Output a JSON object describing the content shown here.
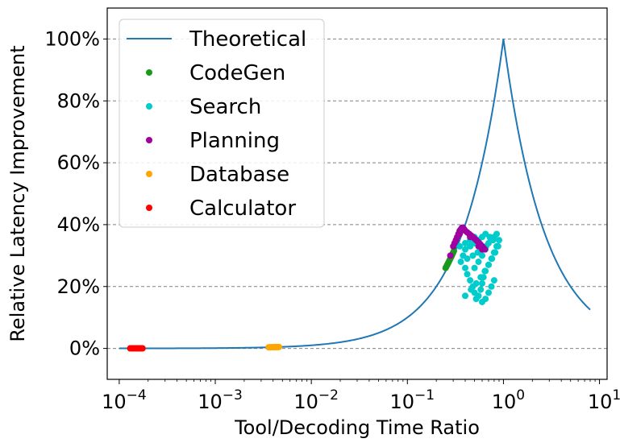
{
  "chart_data": {
    "type": "scatter",
    "title": "",
    "xlabel": "Tool/Decoding Time Ratio",
    "ylabel": "Relative Latency Improvement",
    "xscale": "log",
    "xlim": [
      7.5e-05,
      12
    ],
    "ylim": [
      -10,
      110
    ],
    "x_ticks": [
      {
        "value": 0.0001,
        "base": "10",
        "exp": "−4"
      },
      {
        "value": 0.001,
        "base": "10",
        "exp": "−3"
      },
      {
        "value": 0.01,
        "base": "10",
        "exp": "−2"
      },
      {
        "value": 0.1,
        "base": "10",
        "exp": "−1"
      },
      {
        "value": 1,
        "base": "10",
        "exp": "0"
      },
      {
        "value": 10,
        "base": "10",
        "exp": "1"
      }
    ],
    "y_ticks": [
      {
        "value": 0,
        "label": "0%"
      },
      {
        "value": 20,
        "label": "20%"
      },
      {
        "value": 40,
        "label": "40%"
      },
      {
        "value": 60,
        "label": "60%"
      },
      {
        "value": 80,
        "label": "80%"
      },
      {
        "value": 100,
        "label": "100%"
      }
    ],
    "grid": "horizontal dashed",
    "legend_position": "top-left",
    "theoretical": {
      "name": "Theoretical",
      "color": "#1f77b4",
      "formula": "100*r for r<=1, 100/r for r>1",
      "x_range": [
        0.0001,
        8
      ]
    },
    "series": [
      {
        "name": "CodeGen",
        "color": "#1a9a1a",
        "points": [
          [
            0.25,
            26
          ],
          [
            0.255,
            26.5
          ],
          [
            0.26,
            27
          ],
          [
            0.265,
            27.5
          ],
          [
            0.27,
            28
          ],
          [
            0.275,
            28.5
          ],
          [
            0.28,
            29
          ],
          [
            0.285,
            29.5
          ],
          [
            0.29,
            30
          ],
          [
            0.295,
            30.5
          ],
          [
            0.3,
            31
          ],
          [
            0.305,
            31.5
          ]
        ]
      },
      {
        "name": "Search",
        "color": "#00cccc",
        "points": [
          [
            0.4,
            26
          ],
          [
            0.42,
            24
          ],
          [
            0.45,
            22
          ],
          [
            0.48,
            20
          ],
          [
            0.5,
            18
          ],
          [
            0.52,
            16
          ],
          [
            0.55,
            17
          ],
          [
            0.58,
            19
          ],
          [
            0.6,
            21
          ],
          [
            0.62,
            23
          ],
          [
            0.65,
            25
          ],
          [
            0.7,
            27
          ],
          [
            0.75,
            29
          ],
          [
            0.8,
            31
          ],
          [
            0.85,
            33
          ],
          [
            0.78,
            35
          ],
          [
            0.72,
            36
          ],
          [
            0.65,
            37
          ],
          [
            0.6,
            36
          ],
          [
            0.55,
            35
          ],
          [
            0.5,
            34
          ],
          [
            0.45,
            33
          ],
          [
            0.4,
            32
          ],
          [
            0.38,
            30
          ],
          [
            0.36,
            28
          ],
          [
            0.42,
            29
          ],
          [
            0.48,
            30
          ],
          [
            0.54,
            31
          ],
          [
            0.6,
            32
          ],
          [
            0.66,
            33
          ],
          [
            0.7,
            34
          ],
          [
            0.74,
            35
          ],
          [
            0.8,
            36
          ],
          [
            0.85,
            37
          ],
          [
            0.9,
            35
          ],
          [
            0.88,
            33
          ],
          [
            0.82,
            31
          ],
          [
            0.76,
            29
          ],
          [
            0.7,
            27
          ],
          [
            0.64,
            25
          ],
          [
            0.58,
            23
          ],
          [
            0.52,
            21
          ],
          [
            0.46,
            19
          ],
          [
            0.4,
            17
          ],
          [
            0.6,
            15
          ],
          [
            0.65,
            16
          ],
          [
            0.7,
            18
          ],
          [
            0.75,
            20
          ],
          [
            0.8,
            22
          ],
          [
            0.5,
            26
          ],
          [
            0.55,
            28
          ],
          [
            0.6,
            30
          ],
          [
            0.65,
            32
          ],
          [
            0.5,
            36
          ],
          [
            0.45,
            35
          ],
          [
            0.4,
            34
          ],
          [
            0.35,
            33
          ]
        ]
      },
      {
        "name": "Planning",
        "color": "#a000a0",
        "points": [
          [
            0.32,
            35
          ],
          [
            0.33,
            36
          ],
          [
            0.34,
            37
          ],
          [
            0.35,
            38
          ],
          [
            0.36,
            38.5
          ],
          [
            0.37,
            39
          ],
          [
            0.38,
            39
          ],
          [
            0.39,
            38.5
          ],
          [
            0.4,
            38
          ],
          [
            0.42,
            37.5
          ],
          [
            0.44,
            37
          ],
          [
            0.46,
            36.5
          ],
          [
            0.48,
            36
          ],
          [
            0.5,
            35.5
          ],
          [
            0.52,
            35
          ],
          [
            0.54,
            34.5
          ],
          [
            0.56,
            34
          ],
          [
            0.58,
            33.5
          ],
          [
            0.6,
            33
          ],
          [
            0.62,
            32.5
          ],
          [
            0.64,
            32
          ],
          [
            0.3,
            33
          ],
          [
            0.31,
            34
          ],
          [
            0.35,
            37
          ],
          [
            0.45,
            36
          ],
          [
            0.55,
            33
          ],
          [
            0.6,
            32
          ],
          [
            0.28,
            30
          ]
        ]
      },
      {
        "name": "Database",
        "color": "#ffa500",
        "points": [
          [
            0.0036,
            0.36
          ],
          [
            0.0038,
            0.38
          ],
          [
            0.004,
            0.4
          ],
          [
            0.0042,
            0.42
          ],
          [
            0.0044,
            0.44
          ],
          [
            0.0046,
            0.46
          ],
          [
            0.0037,
            0.37
          ],
          [
            0.0041,
            0.41
          ],
          [
            0.0043,
            0.43
          ],
          [
            0.0045,
            0.45
          ]
        ]
      },
      {
        "name": "Calculator",
        "color": "#ff0000",
        "points": [
          [
            0.00013,
            0.013
          ],
          [
            0.00014,
            0.014
          ],
          [
            0.00015,
            0.015
          ],
          [
            0.00016,
            0.016
          ],
          [
            0.00017,
            0.017
          ],
          [
            0.000135,
            0.0135
          ],
          [
            0.000145,
            0.0145
          ],
          [
            0.000155,
            0.0155
          ],
          [
            0.000165,
            0.0165
          ],
          [
            0.000175,
            0.0175
          ]
        ]
      }
    ]
  }
}
